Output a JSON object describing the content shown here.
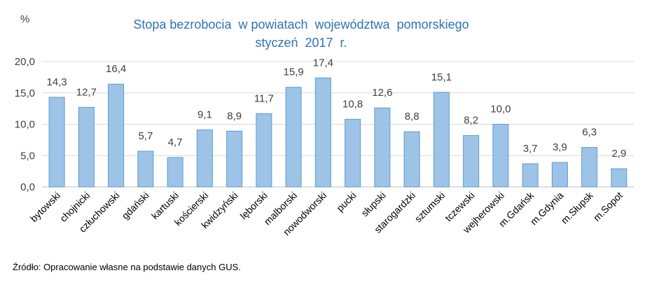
{
  "chart_data": {
    "type": "bar",
    "title": "Stopa bezrobocia  w powiatach  województwa  pomorskiego",
    "subtitle": "styczeń  2017  r.",
    "ylabel": "%",
    "xlabel": "",
    "ylim": [
      0,
      20
    ],
    "yticks": [
      "0,0",
      "5,0",
      "10,0",
      "15,0",
      "20,0"
    ],
    "ytick_values": [
      0,
      5,
      10,
      15,
      20
    ],
    "grid": true,
    "categories": [
      "bytowski",
      "chojnicki",
      "człuchowski",
      "gdański",
      "kartuski",
      "kościerski",
      "kwidzyński",
      "lęborski",
      "malborski",
      "nowodworski",
      "pucki",
      "słupski",
      "starogardzki",
      "sztumski",
      "tczewski",
      "wejherowski",
      "m.Gdańsk",
      "m.Gdynia",
      "m.Słupsk",
      "m.Sopot"
    ],
    "values": [
      14.3,
      12.7,
      16.4,
      5.7,
      4.7,
      9.1,
      8.9,
      11.7,
      15.9,
      17.4,
      10.8,
      12.6,
      8.8,
      15.1,
      8.2,
      10.0,
      3.7,
      3.9,
      6.3,
      2.9
    ],
    "value_labels": [
      "14,3",
      "12,7",
      "16,4",
      "5,7",
      "4,7",
      "9,1",
      "8,9",
      "11,7",
      "15,9",
      "17,4",
      "10,8",
      "12,6",
      "8,8",
      "15,1",
      "8,2",
      "10,0",
      "3,7",
      "3,9",
      "6,3",
      "2,9"
    ],
    "colors": {
      "bar_fill": "#9dc3e6",
      "bar_stroke": "#5b9bd5",
      "grid": "#d9d9d9",
      "title": "#2e74b5",
      "text": "#404040"
    }
  },
  "footer": {
    "source": "Źródło: Opracowanie własne na podstawie danych GUS."
  }
}
